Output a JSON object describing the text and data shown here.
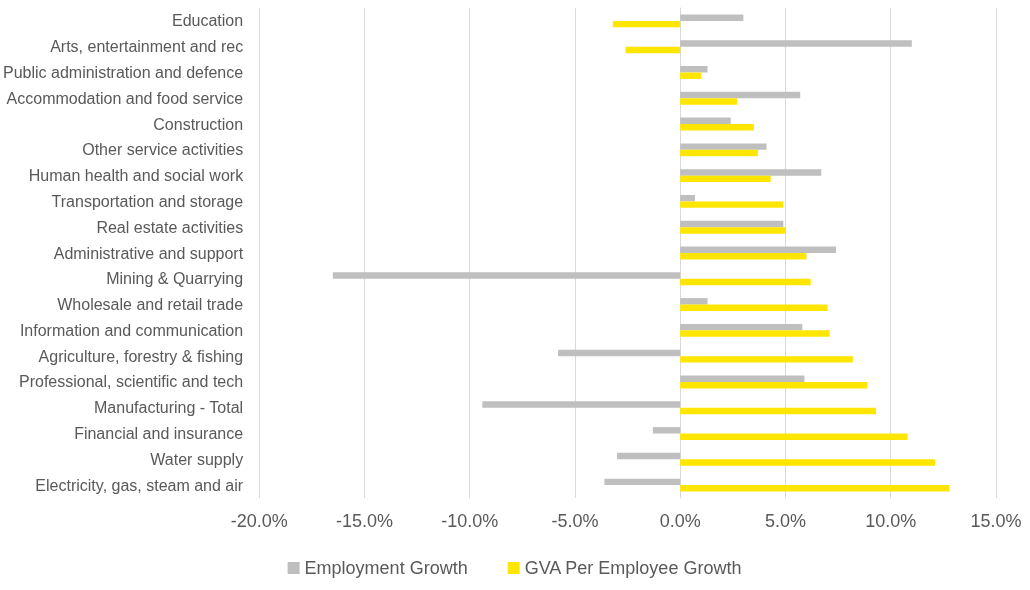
{
  "chart_data": {
    "type": "bar",
    "orientation": "horizontal",
    "categories": [
      "Education",
      "Arts, entertainment and rec",
      "Public administration and defence",
      "Accommodation and food service",
      "Construction",
      "Other service activities",
      "Human health and social work",
      "Transportation and storage",
      "Real estate activities",
      "Administrative and support",
      "Mining & Quarrying",
      "Wholesale and retail trade",
      "Information and communication",
      "Agriculture, forestry & fishing",
      "Professional, scientific and tech",
      "Manufacturing - Total",
      "Financial and insurance",
      "Water supply",
      "Electricity, gas, steam and air"
    ],
    "series": [
      {
        "name": "Employment Growth",
        "color": "#bfbfbf",
        "values": [
          3.0,
          11.0,
          1.3,
          5.7,
          2.4,
          4.1,
          6.7,
          0.7,
          4.9,
          7.4,
          -16.5,
          1.3,
          5.8,
          -5.8,
          5.9,
          -9.4,
          -1.3,
          -3.0,
          -3.6
        ]
      },
      {
        "name": "GVA Per Employee Growth",
        "color": "#ffe600",
        "values": [
          -3.2,
          -2.6,
          1.0,
          2.7,
          3.5,
          3.7,
          4.3,
          4.9,
          5.0,
          6.0,
          6.2,
          7.0,
          7.1,
          8.2,
          8.9,
          9.3,
          10.8,
          12.1,
          12.8
        ]
      }
    ],
    "xlim": [
      -20,
      15
    ],
    "xticks": [
      {
        "value": -20,
        "label": "-20.0%"
      },
      {
        "value": -15,
        "label": "-15.0%"
      },
      {
        "value": -10,
        "label": "-10.0%"
      },
      {
        "value": -5,
        "label": "-5.0%"
      },
      {
        "value": 0,
        "label": "0.0%"
      },
      {
        "value": 5,
        "label": "5.0%"
      },
      {
        "value": 10,
        "label": "10.0%"
      },
      {
        "value": 15,
        "label": "15.0%"
      }
    ],
    "grid": "x",
    "legend": "bottom"
  }
}
